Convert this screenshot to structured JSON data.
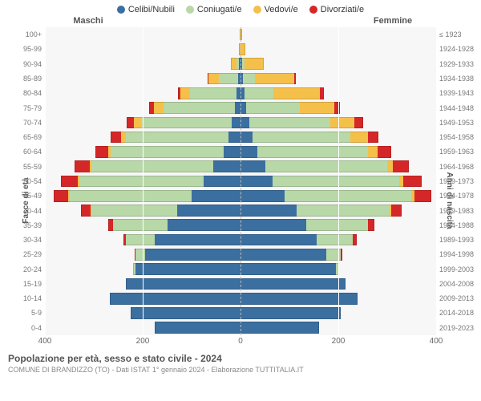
{
  "title": "Popolazione per età, sesso e stato civile - 2024",
  "subtitle": "COMUNE DI BRANDIZZO (TO) - Dati ISTAT 1° gennaio 2024 - Elaborazione TUTTITALIA.IT",
  "y_left_title": "Fasce di età",
  "y_right_title": "Anni di nascita",
  "header_male": "Maschi",
  "header_female": "Femmine",
  "legend": [
    {
      "label": "Celibi/Nubili",
      "color": "#3b6fa0"
    },
    {
      "label": "Coniugati/e",
      "color": "#b8d8a8"
    },
    {
      "label": "Vedovi/e",
      "color": "#f5c04a"
    },
    {
      "label": "Divorziati/e",
      "color": "#d62728"
    }
  ],
  "colors": {
    "single": "#3b6fa0",
    "married": "#b8d8a8",
    "widowed": "#f5c04a",
    "divorced": "#d62728",
    "panel_bg": "#f7f7f7",
    "grid": "#ffffff"
  },
  "x_max": 400,
  "x_ticks": [
    400,
    200,
    0,
    200,
    400
  ],
  "age_bands": [
    {
      "age": "100+",
      "year": "≤ 1923",
      "m": [
        0,
        0,
        2,
        0
      ],
      "f": [
        0,
        0,
        3,
        0
      ]
    },
    {
      "age": "95-99",
      "year": "1924-1928",
      "m": [
        0,
        0,
        4,
        0
      ],
      "f": [
        0,
        0,
        10,
        0
      ]
    },
    {
      "age": "90-94",
      "year": "1929-1933",
      "m": [
        3,
        5,
        12,
        0
      ],
      "f": [
        3,
        5,
        40,
        0
      ]
    },
    {
      "age": "85-89",
      "year": "1934-1938",
      "m": [
        5,
        40,
        20,
        2
      ],
      "f": [
        5,
        25,
        80,
        3
      ]
    },
    {
      "age": "80-84",
      "year": "1939-1943",
      "m": [
        8,
        95,
        20,
        5
      ],
      "f": [
        8,
        60,
        95,
        8
      ]
    },
    {
      "age": "75-79",
      "year": "1944-1948",
      "m": [
        12,
        145,
        20,
        10
      ],
      "f": [
        12,
        110,
        70,
        12
      ]
    },
    {
      "age": "70-74",
      "year": "1949-1953",
      "m": [
        18,
        185,
        15,
        15
      ],
      "f": [
        18,
        165,
        50,
        18
      ]
    },
    {
      "age": "65-69",
      "year": "1954-1958",
      "m": [
        25,
        210,
        10,
        20
      ],
      "f": [
        25,
        200,
        35,
        22
      ]
    },
    {
      "age": "60-64",
      "year": "1959-1963",
      "m": [
        35,
        230,
        6,
        25
      ],
      "f": [
        35,
        225,
        20,
        28
      ]
    },
    {
      "age": "55-59",
      "year": "1964-1968",
      "m": [
        55,
        250,
        4,
        30
      ],
      "f": [
        50,
        250,
        12,
        32
      ]
    },
    {
      "age": "50-54",
      "year": "1969-1973",
      "m": [
        75,
        255,
        3,
        35
      ],
      "f": [
        65,
        260,
        8,
        38
      ]
    },
    {
      "age": "45-49",
      "year": "1974-1978",
      "m": [
        100,
        250,
        2,
        30
      ],
      "f": [
        90,
        260,
        5,
        35
      ]
    },
    {
      "age": "40-44",
      "year": "1979-1983",
      "m": [
        130,
        175,
        1,
        20
      ],
      "f": [
        115,
        190,
        3,
        22
      ]
    },
    {
      "age": "35-39",
      "year": "1984-1988",
      "m": [
        150,
        110,
        0,
        10
      ],
      "f": [
        135,
        125,
        1,
        12
      ]
    },
    {
      "age": "30-34",
      "year": "1989-1993",
      "m": [
        175,
        60,
        0,
        5
      ],
      "f": [
        155,
        75,
        0,
        7
      ]
    },
    {
      "age": "25-29",
      "year": "1994-1998",
      "m": [
        195,
        20,
        0,
        2
      ],
      "f": [
        175,
        30,
        0,
        3
      ]
    },
    {
      "age": "20-24",
      "year": "1999-2003",
      "m": [
        215,
        4,
        0,
        0
      ],
      "f": [
        195,
        6,
        0,
        0
      ]
    },
    {
      "age": "15-19",
      "year": "2004-2008",
      "m": [
        235,
        0,
        0,
        0
      ],
      "f": [
        215,
        0,
        0,
        0
      ]
    },
    {
      "age": "10-14",
      "year": "2009-2013",
      "m": [
        268,
        0,
        0,
        0
      ],
      "f": [
        240,
        0,
        0,
        0
      ]
    },
    {
      "age": "5-9",
      "year": "2014-2018",
      "m": [
        225,
        0,
        0,
        0
      ],
      "f": [
        205,
        0,
        0,
        0
      ]
    },
    {
      "age": "0-4",
      "year": "2019-2023",
      "m": [
        175,
        0,
        0,
        0
      ],
      "f": [
        160,
        0,
        0,
        0
      ]
    }
  ]
}
